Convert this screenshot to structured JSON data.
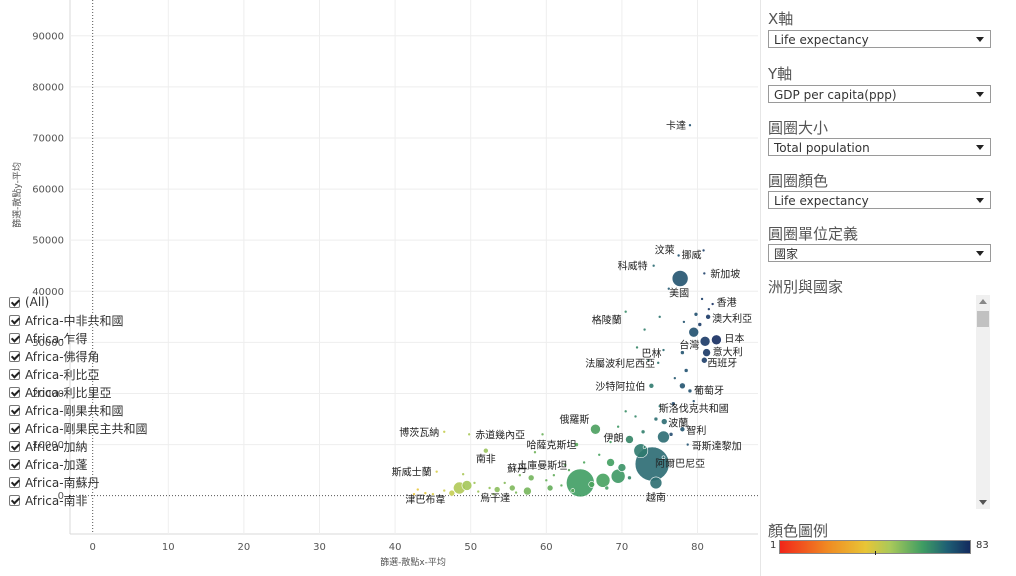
{
  "chart_data": {
    "type": "scatter",
    "xlabel": "篩選-散點x-平均",
    "ylabel": "篩選-散點y-平均",
    "xlim": [
      -3,
      88
    ],
    "ylim": [
      -7500,
      97000
    ],
    "xticks": [
      0,
      10,
      20,
      30,
      40,
      50,
      60,
      70,
      80
    ],
    "yticks": [
      0,
      10000,
      20000,
      30000,
      40000,
      50000,
      60000,
      70000,
      80000,
      90000
    ],
    "labeled_points": [
      {
        "label": "卡達",
        "x": 79.0,
        "y": 72500,
        "r": 1.5,
        "color": "#1f4f6e"
      },
      {
        "label": "汶萊",
        "x": 77.5,
        "y": 47000,
        "r": 1.5,
        "color": "#1f4f6e"
      },
      {
        "label": "挪威",
        "x": 80.8,
        "y": 48000,
        "r": 1.5,
        "color": "#1d3f69"
      },
      {
        "label": "科威特",
        "x": 74.2,
        "y": 45000,
        "r": 1.5,
        "color": "#2a6a72"
      },
      {
        "label": "新加坡",
        "x": 80.9,
        "y": 43500,
        "r": 1.5,
        "color": "#1d3f69"
      },
      {
        "label": "美國",
        "x": 77.7,
        "y": 42500,
        "r": 8,
        "color": "#22536f"
      },
      {
        "label": "香港",
        "x": 82.0,
        "y": 37500,
        "r": 1.5,
        "color": "#172f63"
      },
      {
        "label": "澳大利亞",
        "x": 81.4,
        "y": 35000,
        "r": 2.5,
        "color": "#1a3966"
      },
      {
        "label": "格陵蘭",
        "x": 70.5,
        "y": 36000,
        "r": 1.5,
        "color": "#3b8e6a"
      },
      {
        "label": "日本",
        "x": 82.5,
        "y": 30500,
        "r": 5,
        "color": "#152c61"
      },
      {
        "label": "巴林",
        "x": 75.5,
        "y": 28500,
        "r": 1.5,
        "color": "#2b6b72"
      },
      {
        "label": "台灣",
        "x": 78.0,
        "y": 28000,
        "r": 2,
        "color": "#22536f"
      },
      {
        "label": "意大利",
        "x": 81.2,
        "y": 28000,
        "r": 4,
        "color": "#1a3966"
      },
      {
        "label": "西班牙",
        "x": 80.9,
        "y": 26500,
        "r": 3,
        "color": "#1c3d68"
      },
      {
        "label": "法屬波利尼西亞",
        "x": 74.8,
        "y": 26000,
        "r": 1.5,
        "color": "#2e7470"
      },
      {
        "label": "沙特阿拉伯",
        "x": 73.9,
        "y": 21500,
        "r": 2.5,
        "color": "#307a6e"
      },
      {
        "label": "葡萄牙",
        "x": 79.0,
        "y": 20500,
        "r": 2,
        "color": "#1f4f6e"
      },
      {
        "label": "俄羅斯",
        "x": 66.5,
        "y": 13000,
        "r": 5,
        "color": "#4a9e5e"
      },
      {
        "label": "斯洛伐克共和國",
        "x": 75.0,
        "y": 17500,
        "r": 1.5,
        "color": "#2e7470"
      },
      {
        "label": "波蘭",
        "x": 75.6,
        "y": 14500,
        "r": 3,
        "color": "#2b6b72"
      },
      {
        "label": "智利",
        "x": 78.0,
        "y": 13000,
        "r": 2.5,
        "color": "#22536f"
      },
      {
        "label": "伊朗",
        "x": 71.0,
        "y": 11000,
        "r": 4,
        "color": "#338465"
      },
      {
        "label": "哈薩克斯坦",
        "x": 64.0,
        "y": 10000,
        "r": 2,
        "color": "#58a85a"
      },
      {
        "label": "哥斯達黎加",
        "x": 78.7,
        "y": 10000,
        "r": 1.5,
        "color": "#205170"
      },
      {
        "label": "博茨瓦納",
        "x": 46.5,
        "y": 12500,
        "r": 1.5,
        "color": "#c5cd52"
      },
      {
        "label": "赤道幾內亞",
        "x": 49.8,
        "y": 12000,
        "r": 1.5,
        "color": "#a8c85a"
      },
      {
        "label": "南非",
        "x": 52.0,
        "y": 8800,
        "r": 2.5,
        "color": "#9ac35c"
      },
      {
        "label": "土庫曼斯坦",
        "x": 62.5,
        "y": 6000,
        "r": 1.5,
        "color": "#5aa95a"
      },
      {
        "label": "蘇丹",
        "x": 58.0,
        "y": 3500,
        "r": 3,
        "color": "#72b45b"
      },
      {
        "label": "阿爾巴尼亞",
        "x": 74.0,
        "y": 6200,
        "r": 17,
        "color": "#2a6a72"
      },
      {
        "label": "越南",
        "x": 74.5,
        "y": 2500,
        "r": 6,
        "color": "#2c6e71"
      },
      {
        "label": "斯威士蘭",
        "x": 45.5,
        "y": 4700,
        "r": 1.5,
        "color": "#d8cf4a"
      },
      {
        "label": "津巴布韋",
        "x": 44.0,
        "y": 500,
        "r": 1.5,
        "color": "#e6c83e"
      },
      {
        "label": "烏干達",
        "x": 53.5,
        "y": 1200,
        "r": 3,
        "color": "#8bbd5c"
      }
    ],
    "unlabeled_points": [
      {
        "x": 64.5,
        "y": 2500,
        "r": 14,
        "color": "#3f9d63"
      },
      {
        "x": 67.5,
        "y": 3000,
        "r": 7,
        "color": "#46a25f"
      },
      {
        "x": 69.5,
        "y": 3800,
        "r": 7,
        "color": "#3d9864"
      },
      {
        "x": 72.5,
        "y": 8800,
        "r": 7,
        "color": "#2f7a6e"
      },
      {
        "x": 75.5,
        "y": 11500,
        "r": 6,
        "color": "#2b6b72"
      },
      {
        "x": 79.5,
        "y": 32000,
        "r": 5,
        "color": "#1f4f6e"
      },
      {
        "x": 81.0,
        "y": 30200,
        "r": 5,
        "color": "#1a3966"
      },
      {
        "x": 78.0,
        "y": 21500,
        "r": 3,
        "color": "#22536f"
      },
      {
        "x": 48.5,
        "y": 1500,
        "r": 6,
        "color": "#b0c957"
      },
      {
        "x": 49.5,
        "y": 2000,
        "r": 5,
        "color": "#a4c659"
      },
      {
        "x": 47.5,
        "y": 500,
        "r": 3,
        "color": "#c4cd52"
      },
      {
        "x": 57.5,
        "y": 900,
        "r": 4,
        "color": "#76b55b"
      },
      {
        "x": 55.5,
        "y": 1500,
        "r": 3,
        "color": "#7eb85b"
      },
      {
        "x": 60.5,
        "y": 1500,
        "r": 3,
        "color": "#64ad5a"
      },
      {
        "x": 68.5,
        "y": 6500,
        "r": 4,
        "color": "#419f61"
      },
      {
        "x": 70.0,
        "y": 5500,
        "r": 4,
        "color": "#3a9266"
      },
      {
        "x": 66.0,
        "y": 2200,
        "r": 3,
        "color": "#4ba45d"
      },
      {
        "x": 76.5,
        "y": 12000,
        "r": 2,
        "color": "#274e71"
      },
      {
        "x": 79.8,
        "y": 35500,
        "r": 2,
        "color": "#1f4f6e"
      },
      {
        "x": 80.3,
        "y": 33500,
        "r": 2,
        "color": "#1c3d68"
      },
      {
        "x": 78.5,
        "y": 24500,
        "r": 2,
        "color": "#205170"
      },
      {
        "x": 76.8,
        "y": 18000,
        "r": 2,
        "color": "#264f72"
      },
      {
        "x": 74.5,
        "y": 15000,
        "r": 2,
        "color": "#2c6e71"
      },
      {
        "x": 72.8,
        "y": 12500,
        "r": 2,
        "color": "#317e6c"
      },
      {
        "x": 71.8,
        "y": 15500,
        "r": 1.5,
        "color": "#358769"
      },
      {
        "x": 70.5,
        "y": 16500,
        "r": 1.5,
        "color": "#398e66"
      },
      {
        "x": 69.5,
        "y": 13500,
        "r": 1.5,
        "color": "#3d9864"
      },
      {
        "x": 68.5,
        "y": 10500,
        "r": 1.5,
        "color": "#419f61"
      },
      {
        "x": 67.0,
        "y": 8000,
        "r": 1.5,
        "color": "#47a35e"
      },
      {
        "x": 65.0,
        "y": 6500,
        "r": 1.5,
        "color": "#4fa65c"
      },
      {
        "x": 63.0,
        "y": 5000,
        "r": 1.5,
        "color": "#57a85a"
      },
      {
        "x": 61.0,
        "y": 4000,
        "r": 1.5,
        "color": "#62ac5a"
      },
      {
        "x": 59.5,
        "y": 12000,
        "r": 1.5,
        "color": "#6ab05a"
      },
      {
        "x": 58.5,
        "y": 8500,
        "r": 1.5,
        "color": "#70b25a"
      },
      {
        "x": 56.5,
        "y": 4000,
        "r": 1.5,
        "color": "#7ab65b"
      },
      {
        "x": 54.5,
        "y": 2500,
        "r": 1.5,
        "color": "#86bb5c"
      },
      {
        "x": 52.5,
        "y": 1500,
        "r": 1.5,
        "color": "#94c15c"
      },
      {
        "x": 51.0,
        "y": 800,
        "r": 1.5,
        "color": "#9dc45c"
      },
      {
        "x": 46.5,
        "y": 1000,
        "r": 1.5,
        "color": "#cfcd4e"
      },
      {
        "x": 45.0,
        "y": 300,
        "r": 1.5,
        "color": "#dccc46"
      },
      {
        "x": 43.0,
        "y": 1200,
        "r": 1.5,
        "color": "#e8c73c"
      },
      {
        "x": 42.5,
        "y": 300,
        "r": 1.5,
        "color": "#ecc43a"
      },
      {
        "x": 49.0,
        "y": 4200,
        "r": 1.5,
        "color": "#abc859"
      },
      {
        "x": 50.5,
        "y": 2500,
        "r": 1.5,
        "color": "#a0c55b"
      },
      {
        "x": 53.0,
        "y": 300,
        "r": 1.5,
        "color": "#90bf5c"
      },
      {
        "x": 56.0,
        "y": 600,
        "r": 1.5,
        "color": "#7cb75b"
      },
      {
        "x": 60.0,
        "y": 3000,
        "r": 1.5,
        "color": "#66ae5a"
      },
      {
        "x": 62.0,
        "y": 2000,
        "r": 1.5,
        "color": "#5ca95a"
      },
      {
        "x": 73.0,
        "y": 32500,
        "r": 1.5,
        "color": "#317e6c"
      },
      {
        "x": 75.0,
        "y": 35000,
        "r": 1.5,
        "color": "#2e7470"
      },
      {
        "x": 78.2,
        "y": 34000,
        "r": 1.5,
        "color": "#22536f"
      },
      {
        "x": 80.6,
        "y": 38500,
        "r": 1.5,
        "color": "#1d3f69"
      },
      {
        "x": 81.5,
        "y": 36500,
        "r": 1.5,
        "color": "#1a3966"
      },
      {
        "x": 76.2,
        "y": 40500,
        "r": 1.5,
        "color": "#265a71"
      },
      {
        "x": 72.0,
        "y": 29000,
        "r": 1.5,
        "color": "#338465"
      },
      {
        "x": 73.5,
        "y": 26500,
        "r": 1.5,
        "color": "#307a6e"
      },
      {
        "x": 77.0,
        "y": 23000,
        "r": 1.5,
        "color": "#24566f"
      },
      {
        "x": 79.5,
        "y": 18500,
        "r": 1.5,
        "color": "#1f4f6e"
      },
      {
        "x": 73.0,
        "y": 9500,
        "r": 1.5,
        "color": "#317e6c"
      },
      {
        "x": 75.5,
        "y": 7500,
        "r": 1.5,
        "color": "#2b6b72"
      },
      {
        "x": 71.0,
        "y": 3500,
        "r": 2,
        "color": "#338465"
      },
      {
        "x": 68.0,
        "y": 1500,
        "r": 2,
        "color": "#43a060"
      },
      {
        "x": 63.5,
        "y": 1000,
        "r": 2,
        "color": "#55a75b"
      }
    ]
  },
  "sidebar": {
    "x_axis": {
      "title": "X軸",
      "value": "Life expectancy"
    },
    "y_axis": {
      "title": "Y軸",
      "value": "GDP per capita(ppp)"
    },
    "circle_size": {
      "title": "圓圈大小",
      "value": "Total population"
    },
    "circle_color": {
      "title": "圓圈顏色",
      "value": "Life expectancy"
    },
    "circle_unit": {
      "title": "圓圈單位定義",
      "value": "國家"
    },
    "filter": {
      "title": "洲別與國家",
      "items": [
        "(All)",
        "Africa-中非共和國",
        "Africa-乍得",
        "Africa-佛得角",
        "Africa-利比亞",
        "Africa-利比里亞",
        "Africa-剛果共和國",
        "Africa-剛果民主共和國",
        "Africa-加納",
        "Africa-加蓬",
        "Africa-南蘇丹",
        "Africa-南非"
      ]
    },
    "legend": {
      "title": "顏色圖例",
      "min": "1",
      "max": "83"
    }
  }
}
